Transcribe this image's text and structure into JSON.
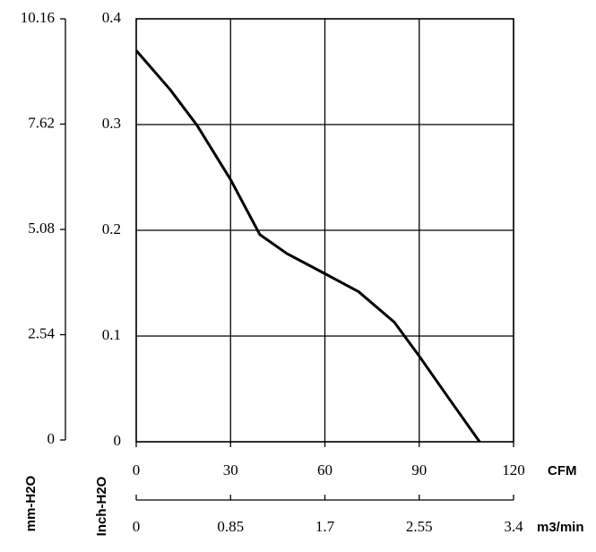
{
  "chart_data": {
    "type": "line",
    "x": [
      0,
      10.8,
      19.4,
      30,
      39.3,
      47.9,
      60,
      70.7,
      82.1,
      90,
      99.2,
      109.2
    ],
    "series": [
      {
        "color": "#000000",
        "values": [
          0.37,
          0.333,
          0.299,
          0.248,
          0.196,
          0.178,
          0.159,
          0.142,
          0.113,
          0.081,
          0.042,
          0
        ]
      }
    ],
    "xlim": [
      0,
      120
    ],
    "xticks": [
      0,
      30,
      60,
      90,
      120
    ],
    "ylim": [
      0,
      0.4
    ],
    "yticks": [
      0,
      0.1,
      0.2,
      0.3,
      0.4
    ],
    "y2lim": [
      0,
      10.16
    ],
    "y2ticks": [
      0,
      2.54,
      5.08,
      7.62,
      10.16
    ],
    "x2lim": [
      0,
      3.4
    ],
    "x2ticks": [
      0,
      0.85,
      1.7,
      2.55,
      3.4
    ],
    "xlabel": "CFM",
    "x2label": "m3/min",
    "ylabel": "Inch-H2O",
    "y2label": "mm-H2O",
    "grid": true
  }
}
